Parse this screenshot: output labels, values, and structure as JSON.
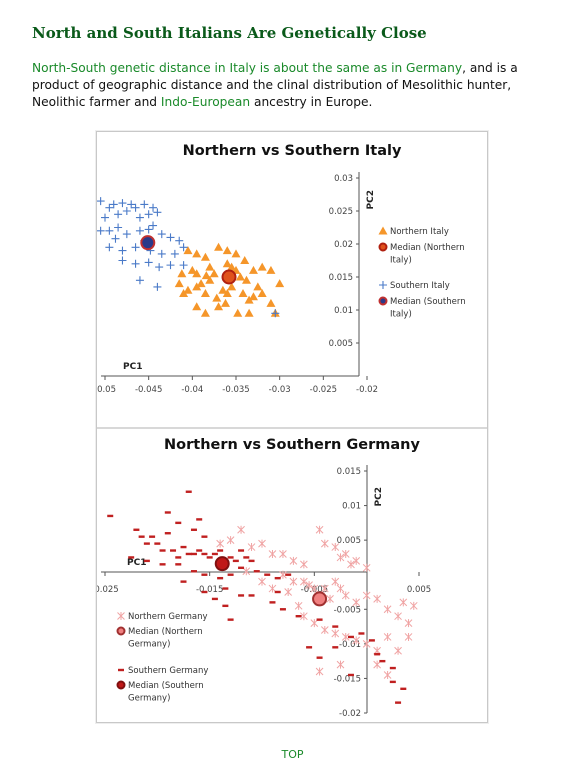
{
  "page": {
    "heading": "North and South Italians Are Genetically Close",
    "intro": {
      "link1": "North-South genetic distance in Italy is about the same as in Germany",
      "text1": ", and is a product of geographic distance and the clinal distribution of Mesolithic hunter, Neolithic farmer and ",
      "link2": "Indo-European",
      "text2": " ancestry in Europe."
    },
    "top_link": "TOP"
  },
  "colors": {
    "heading": "#0a5a1a",
    "link": "#1a8a2a",
    "northern_italy": "#f5962a",
    "southern_italy": "#4a7ac8",
    "median_italy_north": "#e0521c",
    "median_italy_south": "#2a3a8a",
    "northern_germany": "#f0a4a4",
    "southern_germany": "#c02020",
    "median_germany_north": "#f08080",
    "median_germany_south": "#c01818"
  },
  "chart_data": [
    {
      "type": "scatter",
      "title": "Northern vs Southern Italy",
      "xlabel": "PC1",
      "ylabel": "PC2",
      "xlim": [
        -0.05,
        -0.02
      ],
      "ylim": [
        0,
        0.03
      ],
      "xticks": [
        "-0.05",
        "-0.045",
        "-0.04",
        "-0.035",
        "-0.03",
        "-0.025",
        "-0.02"
      ],
      "yticks": [
        "0.03",
        "0.025",
        "0.02",
        "0.015",
        "0.01",
        "0.005"
      ],
      "legend": [
        "Northern Italy",
        "Median (Northern Italy)",
        "Southern Italy",
        "Median (Southern Italy)"
      ],
      "legend_position": "right",
      "series": [
        {
          "name": "Northern Italy",
          "marker": "triangle",
          "points": [
            [
              -0.0405,
              0.019
            ],
            [
              -0.0395,
              0.0185
            ],
            [
              -0.0385,
              0.018
            ],
            [
              -0.037,
              0.0195
            ],
            [
              -0.036,
              0.019
            ],
            [
              -0.035,
              0.0185
            ],
            [
              -0.034,
              0.0175
            ],
            [
              -0.033,
              0.016
            ],
            [
              -0.032,
              0.0165
            ],
            [
              -0.031,
              0.016
            ],
            [
              -0.03,
              0.014
            ],
            [
              -0.04,
              0.016
            ],
            [
              -0.0395,
              0.0155
            ],
            [
              -0.038,
              0.0165
            ],
            [
              -0.0375,
              0.0155
            ],
            [
              -0.036,
              0.017
            ],
            [
              -0.0355,
              0.0165
            ],
            [
              -0.035,
              0.016
            ],
            [
              -0.0345,
              0.015
            ],
            [
              -0.0338,
              0.0145
            ],
            [
              -0.0325,
              0.0135
            ],
            [
              -0.0415,
              0.014
            ],
            [
              -0.041,
              0.0125
            ],
            [
              -0.0405,
              0.013
            ],
            [
              -0.0395,
              0.0135
            ],
            [
              -0.039,
              0.014
            ],
            [
              -0.0385,
              0.0125
            ],
            [
              -0.038,
              0.0145
            ],
            [
              -0.0365,
              0.013
            ],
            [
              -0.036,
              0.0125
            ],
            [
              -0.0355,
              0.0135
            ],
            [
              -0.0342,
              0.0125
            ],
            [
              -0.0335,
              0.0115
            ],
            [
              -0.033,
              0.012
            ],
            [
              -0.032,
              0.0125
            ],
            [
              -0.0395,
              0.0105
            ],
            [
              -0.0385,
              0.0095
            ],
            [
              -0.037,
              0.0105
            ],
            [
              -0.0362,
              0.011
            ],
            [
              -0.0348,
              0.0095
            ],
            [
              -0.0335,
              0.0095
            ],
            [
              -0.031,
              0.011
            ],
            [
              -0.0305,
              0.0095
            ],
            [
              -0.0412,
              0.0155
            ],
            [
              -0.0372,
              0.0118
            ],
            [
              -0.0384,
              0.0152
            ]
          ]
        },
        {
          "name": "Median (Northern Italy)",
          "marker": "circle",
          "points": [
            [
              -0.0358,
              0.015
            ]
          ]
        },
        {
          "name": "Southern Italy",
          "marker": "plus",
          "points": [
            [
              -0.0505,
              0.0265
            ],
            [
              -0.0495,
              0.0255
            ],
            [
              -0.049,
              0.026
            ],
            [
              -0.048,
              0.0262
            ],
            [
              -0.047,
              0.026
            ],
            [
              -0.0465,
              0.0255
            ],
            [
              -0.0455,
              0.026
            ],
            [
              -0.0445,
              0.0255
            ],
            [
              -0.05,
              0.024
            ],
            [
              -0.0485,
              0.0245
            ],
            [
              -0.0475,
              0.025
            ],
            [
              -0.046,
              0.024
            ],
            [
              -0.045,
              0.0245
            ],
            [
              -0.044,
              0.0248
            ],
            [
              -0.0505,
              0.022
            ],
            [
              -0.0495,
              0.022
            ],
            [
              -0.0485,
              0.0225
            ],
            [
              -0.0475,
              0.0215
            ],
            [
              -0.046,
              0.022
            ],
            [
              -0.045,
              0.0222
            ],
            [
              -0.0435,
              0.0215
            ],
            [
              -0.0425,
              0.021
            ],
            [
              -0.0415,
              0.0205
            ],
            [
              -0.0495,
              0.0195
            ],
            [
              -0.048,
              0.019
            ],
            [
              -0.0465,
              0.0195
            ],
            [
              -0.0448,
              0.019
            ],
            [
              -0.0435,
              0.0185
            ],
            [
              -0.042,
              0.0185
            ],
            [
              -0.041,
              0.0195
            ],
            [
              -0.048,
              0.0175
            ],
            [
              -0.0465,
              0.017
            ],
            [
              -0.045,
              0.0172
            ],
            [
              -0.0438,
              0.0165
            ],
            [
              -0.0425,
              0.0168
            ],
            [
              -0.041,
              0.0168
            ],
            [
              -0.046,
              0.0145
            ],
            [
              -0.044,
              0.0135
            ],
            [
              -0.0305,
              0.0095
            ],
            [
              -0.0455,
              0.0205
            ],
            [
              -0.0445,
              0.0228
            ],
            [
              -0.0488,
              0.0208
            ]
          ]
        },
        {
          "name": "Median (Southern Italy)",
          "marker": "circle",
          "points": [
            [
              -0.0451,
              0.0202
            ]
          ]
        }
      ]
    },
    {
      "type": "scatter",
      "title": "Northern vs Southern Germany",
      "xlabel": "PC1",
      "ylabel": "PC2",
      "xlim": [
        -0.025,
        0.005
      ],
      "ylim": [
        -0.02,
        0.015
      ],
      "xticks": [
        "-0.025",
        "-0.015",
        "-0.005",
        "0.005"
      ],
      "yticks": [
        "0.015",
        "0.01",
        "0.005",
        "-0.005",
        "-0.01",
        "-0.015",
        "-0.02"
      ],
      "legend": [
        "Northern Germany",
        "Median (Northern Germany)",
        "Southern Germany",
        "Median (Southern Germany)"
      ],
      "legend_position": "bottom-left",
      "series": [
        {
          "name": "Northern Germany",
          "marker": "asterisk",
          "points": [
            [
              -0.014,
              0.0045
            ],
            [
              -0.013,
              0.005
            ],
            [
              -0.012,
              0.0065
            ],
            [
              -0.011,
              0.004
            ],
            [
              -0.01,
              0.0045
            ],
            [
              -0.009,
              0.003
            ],
            [
              -0.008,
              0.003
            ],
            [
              -0.007,
              0.002
            ],
            [
              -0.006,
              0.0015
            ],
            [
              -0.0045,
              0.0065
            ],
            [
              -0.004,
              0.0045
            ],
            [
              -0.003,
              0.004
            ],
            [
              -0.0025,
              0.0025
            ],
            [
              -0.002,
              0.003
            ],
            [
              -0.0015,
              0.0015
            ],
            [
              -0.001,
              0.002
            ],
            [
              0.0,
              0.001
            ],
            [
              -0.008,
              0.0
            ],
            [
              -0.007,
              -0.001
            ],
            [
              -0.006,
              -0.001
            ],
            [
              -0.0055,
              -0.0015
            ],
            [
              -0.005,
              -0.002
            ],
            [
              -0.0045,
              -0.003
            ],
            [
              -0.004,
              -0.002
            ],
            [
              -0.0035,
              -0.0035
            ],
            [
              -0.003,
              -0.001
            ],
            [
              -0.0025,
              -0.002
            ],
            [
              -0.002,
              -0.003
            ],
            [
              -0.001,
              -0.004
            ],
            [
              0.0,
              -0.003
            ],
            [
              0.001,
              -0.0035
            ],
            [
              0.002,
              -0.005
            ],
            [
              0.003,
              -0.006
            ],
            [
              0.004,
              -0.007
            ],
            [
              0.004,
              -0.009
            ],
            [
              -0.006,
              -0.006
            ],
            [
              -0.005,
              -0.007
            ],
            [
              -0.004,
              -0.008
            ],
            [
              -0.003,
              -0.0085
            ],
            [
              -0.002,
              -0.009
            ],
            [
              -0.001,
              -0.0095
            ],
            [
              0.0,
              -0.01
            ],
            [
              0.001,
              -0.011
            ],
            [
              0.002,
              -0.009
            ],
            [
              0.003,
              -0.011
            ],
            [
              -0.0045,
              -0.014
            ],
            [
              -0.0025,
              -0.013
            ],
            [
              0.001,
              -0.013
            ],
            [
              0.002,
              -0.0145
            ],
            [
              -0.0065,
              -0.0045
            ],
            [
              -0.0075,
              -0.0025
            ],
            [
              -0.009,
              -0.002
            ],
            [
              -0.01,
              -0.001
            ],
            [
              -0.0115,
              0.0005
            ],
            [
              0.0035,
              -0.004
            ],
            [
              0.0045,
              -0.0045
            ]
          ]
        },
        {
          "name": "Median (Northern Germany)",
          "marker": "circle",
          "points": [
            [
              -0.0045,
              -0.0035
            ]
          ]
        },
        {
          "name": "Southern Germany",
          "marker": "dash",
          "points": [
            [
              -0.017,
              0.012
            ],
            [
              -0.019,
              0.009
            ],
            [
              -0.018,
              0.0075
            ],
            [
              -0.0165,
              0.0065
            ],
            [
              -0.016,
              0.008
            ],
            [
              -0.0155,
              0.0055
            ],
            [
              -0.0245,
              0.0085
            ],
            [
              -0.022,
              0.0065
            ],
            [
              -0.0215,
              0.0055
            ],
            [
              -0.021,
              0.0045
            ],
            [
              -0.0205,
              0.0055
            ],
            [
              -0.02,
              0.0045
            ],
            [
              -0.0195,
              0.0035
            ],
            [
              -0.019,
              0.006
            ],
            [
              -0.0185,
              0.0035
            ],
            [
              -0.018,
              0.0025
            ],
            [
              -0.0175,
              0.004
            ],
            [
              -0.017,
              0.003
            ],
            [
              -0.0165,
              0.003
            ],
            [
              -0.016,
              0.0035
            ],
            [
              -0.0155,
              0.003
            ],
            [
              -0.015,
              0.0025
            ],
            [
              -0.0145,
              0.003
            ],
            [
              -0.014,
              0.0035
            ],
            [
              -0.0135,
              0.002
            ],
            [
              -0.013,
              0.0025
            ],
            [
              -0.0125,
              0.002
            ],
            [
              -0.012,
              0.0035
            ],
            [
              -0.0115,
              0.0025
            ],
            [
              -0.011,
              0.002
            ],
            [
              -0.0225,
              0.0025
            ],
            [
              -0.021,
              0.002
            ],
            [
              -0.0195,
              0.0015
            ],
            [
              -0.018,
              0.0015
            ],
            [
              -0.0165,
              0.0005
            ],
            [
              -0.0155,
              0.0
            ],
            [
              -0.014,
              -0.0005
            ],
            [
              -0.013,
              0.0
            ],
            [
              -0.012,
              0.001
            ],
            [
              -0.0105,
              0.0005
            ],
            [
              -0.0095,
              0.0
            ],
            [
              -0.0085,
              -0.0005
            ],
            [
              -0.0075,
              0.0
            ],
            [
              -0.0155,
              -0.0025
            ],
            [
              -0.0135,
              -0.002
            ],
            [
              -0.012,
              -0.003
            ],
            [
              -0.011,
              -0.003
            ],
            [
              -0.009,
              -0.004
            ],
            [
              -0.008,
              -0.005
            ],
            [
              -0.0065,
              -0.006
            ],
            [
              -0.0045,
              -0.0065
            ],
            [
              -0.003,
              -0.0075
            ],
            [
              -0.0015,
              -0.009
            ],
            [
              -0.0005,
              -0.0085
            ],
            [
              0.0005,
              -0.0095
            ],
            [
              0.001,
              -0.0115
            ],
            [
              0.0015,
              -0.0125
            ],
            [
              0.0025,
              -0.0135
            ],
            [
              0.0035,
              -0.0165
            ],
            [
              0.003,
              -0.0185
            ],
            [
              0.0025,
              -0.0155
            ],
            [
              -0.0045,
              -0.012
            ],
            [
              -0.0055,
              -0.0105
            ],
            [
              -0.003,
              -0.0105
            ],
            [
              -0.0015,
              -0.0145
            ],
            [
              -0.013,
              -0.0065
            ],
            [
              -0.0085,
              -0.0025
            ],
            [
              -0.0145,
              -0.0035
            ],
            [
              -0.0175,
              -0.001
            ],
            [
              -0.0135,
              -0.0045
            ]
          ]
        },
        {
          "name": "Median (Southern Germany)",
          "marker": "circle",
          "points": [
            [
              -0.0138,
              0.0016
            ]
          ]
        }
      ]
    }
  ]
}
